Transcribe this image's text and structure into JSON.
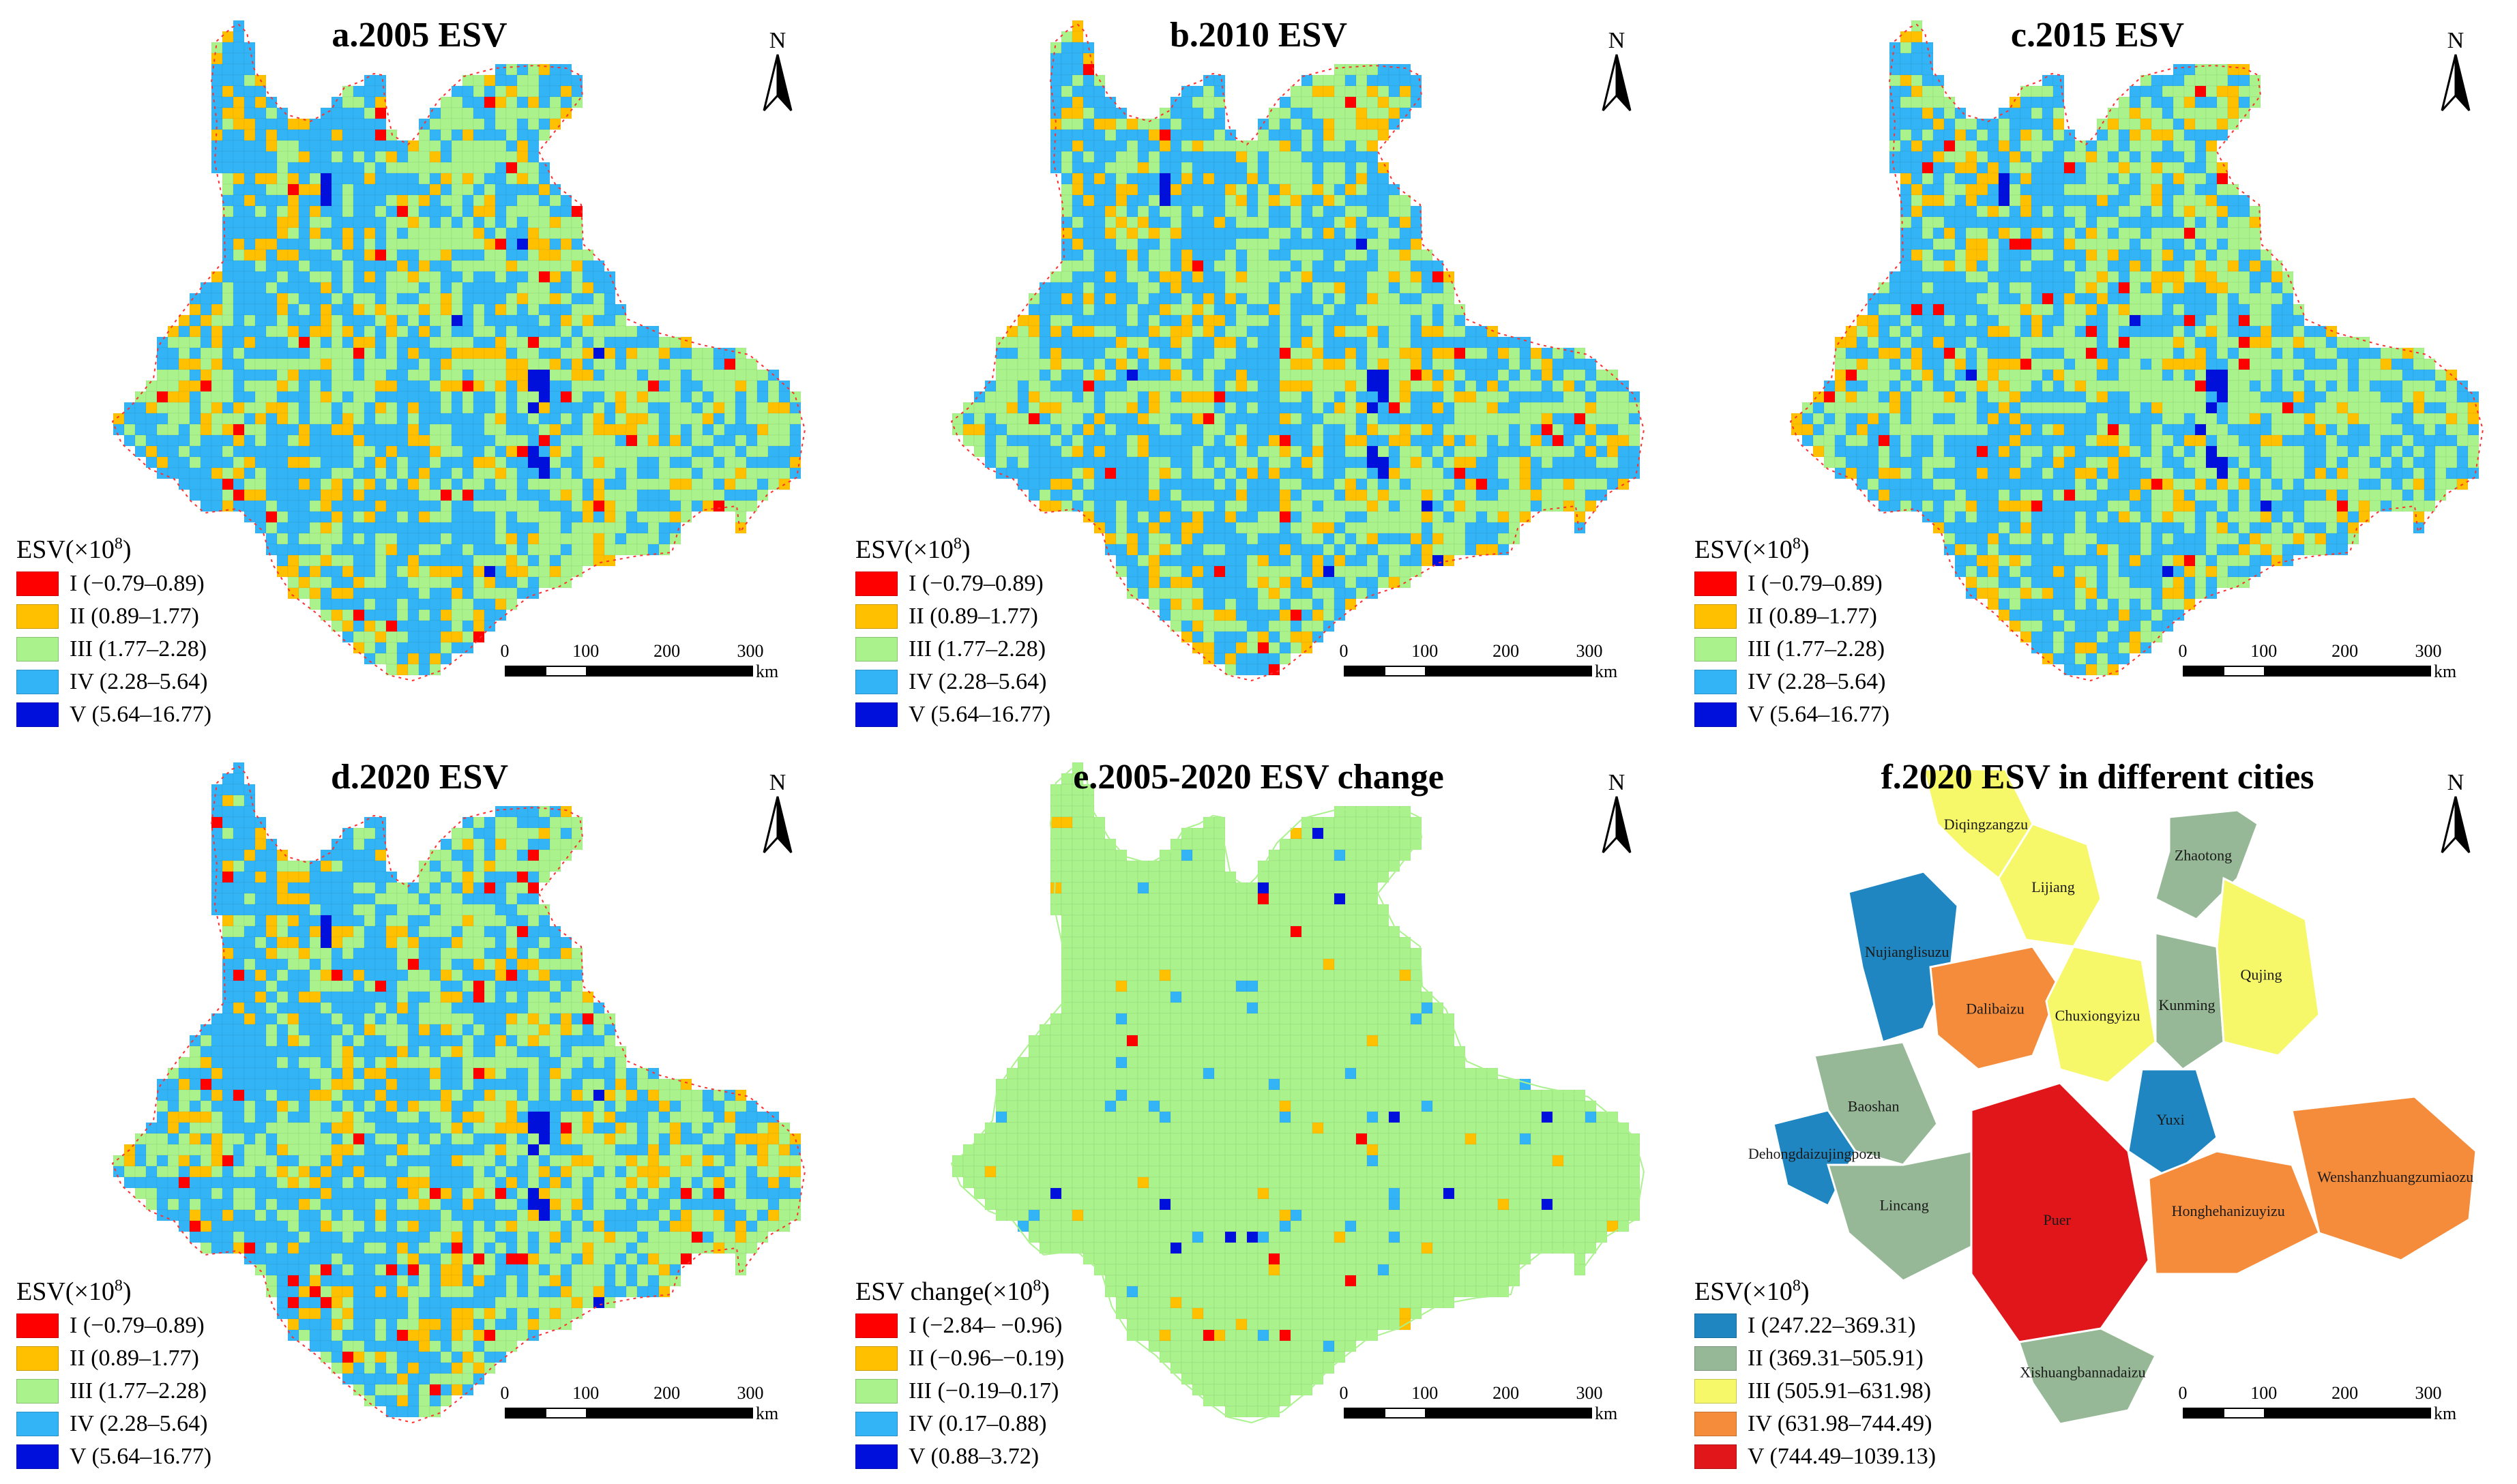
{
  "north_label": "N",
  "scale": {
    "ticks": [
      "0",
      "100",
      "200",
      "300"
    ],
    "unit": "km"
  },
  "palettes": {
    "esv": [
      "#ff0000",
      "#ffc000",
      "#aaf28c",
      "#33b4f6",
      "#0010dc"
    ],
    "city": [
      "#1f86c1",
      "#96b896",
      "#f7f76a",
      "#f58c3c",
      "#e0161b"
    ]
  },
  "panels": [
    {
      "id": "a",
      "title": "a.2005 ESV",
      "type": "esv",
      "legend_title": "ESV(×10",
      "legend_sup": "8",
      "legend_suffix": ")",
      "legend": [
        {
          "label": "I (−0.79–0.89)",
          "color": "#ff0000"
        },
        {
          "label": "II (0.89–1.77)",
          "color": "#ffc000"
        },
        {
          "label": "III (1.77–2.28)",
          "color": "#aaf28c"
        },
        {
          "label": "IV (2.28–5.64)",
          "color": "#33b4f6"
        },
        {
          "label": "V (5.64–16.77)",
          "color": "#0010dc"
        }
      ]
    },
    {
      "id": "b",
      "title": "b.2010 ESV",
      "type": "esv",
      "legend_title": "ESV(×10",
      "legend_sup": "8",
      "legend_suffix": ")",
      "legend": [
        {
          "label": "I (−0.79–0.89)",
          "color": "#ff0000"
        },
        {
          "label": "II (0.89–1.77)",
          "color": "#ffc000"
        },
        {
          "label": "III (1.77–2.28)",
          "color": "#aaf28c"
        },
        {
          "label": "IV (2.28–5.64)",
          "color": "#33b4f6"
        },
        {
          "label": "V (5.64–16.77)",
          "color": "#0010dc"
        }
      ]
    },
    {
      "id": "c",
      "title": "c.2015 ESV",
      "type": "esv",
      "legend_title": "ESV(×10",
      "legend_sup": "8",
      "legend_suffix": ")",
      "legend": [
        {
          "label": "I (−0.79–0.89)",
          "color": "#ff0000"
        },
        {
          "label": "II (0.89–1.77)",
          "color": "#ffc000"
        },
        {
          "label": "III (1.77–2.28)",
          "color": "#aaf28c"
        },
        {
          "label": "IV (2.28–5.64)",
          "color": "#33b4f6"
        },
        {
          "label": "V (5.64–16.77)",
          "color": "#0010dc"
        }
      ]
    },
    {
      "id": "d",
      "title": "d.2020 ESV",
      "type": "esv",
      "legend_title": "ESV(×10",
      "legend_sup": "8",
      "legend_suffix": ")",
      "legend": [
        {
          "label": "I (−0.79–0.89)",
          "color": "#ff0000"
        },
        {
          "label": "II (0.89–1.77)",
          "color": "#ffc000"
        },
        {
          "label": "III (1.77–2.28)",
          "color": "#aaf28c"
        },
        {
          "label": "IV (2.28–5.64)",
          "color": "#33b4f6"
        },
        {
          "label": "V (5.64–16.77)",
          "color": "#0010dc"
        }
      ]
    },
    {
      "id": "e",
      "title": "e.2005-2020 ESV change",
      "type": "change",
      "legend_title": "ESV change(×10",
      "legend_sup": "8",
      "legend_suffix": ")",
      "legend": [
        {
          "label": "I (−2.84– −0.96)",
          "color": "#ff0000"
        },
        {
          "label": "II (−0.96–−0.19)",
          "color": "#ffc000"
        },
        {
          "label": "III (−0.19–0.17)",
          "color": "#aaf28c"
        },
        {
          "label": "IV (0.17–0.88)",
          "color": "#33b4f6"
        },
        {
          "label": "V (0.88–3.72)",
          "color": "#0010dc"
        }
      ]
    },
    {
      "id": "f",
      "title": "f.2020 ESV in different cities",
      "type": "cities",
      "legend_title": "ESV(×10",
      "legend_sup": "8",
      "legend_suffix": ")",
      "legend": [
        {
          "label": "I (247.22–369.31)",
          "color": "#1f86c1"
        },
        {
          "label": "II (369.31–505.91)",
          "color": "#96b896"
        },
        {
          "label": "III (505.91–631.98)",
          "color": "#f7f76a"
        },
        {
          "label": "IV (631.98–744.49)",
          "color": "#f58c3c"
        },
        {
          "label": "V (744.49–1039.13)",
          "color": "#e0161b"
        }
      ],
      "cities": [
        {
          "name": "Diqingzangzu",
          "class": 3
        },
        {
          "name": "Zhaotong",
          "class": 2
        },
        {
          "name": "Nujianglisuzu",
          "class": 1
        },
        {
          "name": "Lijiang",
          "class": 3
        },
        {
          "name": "Dalibaizu",
          "class": 4
        },
        {
          "name": "Chuxiongyizu",
          "class": 3
        },
        {
          "name": "Kunming",
          "class": 2
        },
        {
          "name": "Qujing",
          "class": 3
        },
        {
          "name": "Baoshan",
          "class": 2
        },
        {
          "name": "Dehongdaizujingpozu",
          "class": 1
        },
        {
          "name": "Yuxi",
          "class": 1
        },
        {
          "name": "Lincang",
          "class": 2
        },
        {
          "name": "Puer",
          "class": 5
        },
        {
          "name": "Honghehanizuyizu",
          "class": 4
        },
        {
          "name": "Wenshanzhuangzumiaozu",
          "class": 4
        },
        {
          "name": "Xishuangbannadaizu",
          "class": 2
        }
      ]
    }
  ]
}
